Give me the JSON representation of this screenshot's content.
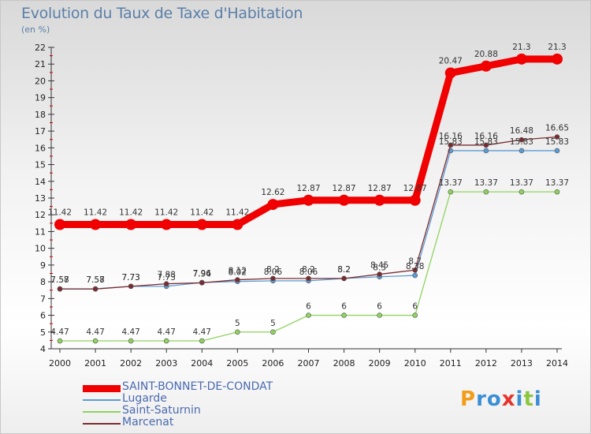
{
  "title": "Evolution du Taux de Taxe d'Habitation",
  "subtitle": "(en %)",
  "logo": {
    "text": "Proxiti",
    "letters": [
      {
        "ch": "P",
        "color": "#f39c1a"
      },
      {
        "ch": "r",
        "color": "#3a8fd4"
      },
      {
        "ch": "o",
        "color": "#3a8fd4"
      },
      {
        "ch": "x",
        "color": "#e8332c"
      },
      {
        "ch": "i",
        "color": "#3a8fd4"
      },
      {
        "ch": "t",
        "color": "#8cc63f"
      },
      {
        "ch": "i",
        "color": "#3a8fd4"
      }
    ]
  },
  "chart_data": {
    "type": "line",
    "title": "Evolution du Taux de Taxe d'Habitation",
    "subtitle": "(en %)",
    "x": [
      "2000",
      "2001",
      "2002",
      "2003",
      "2004",
      "2005",
      "2006",
      "2007",
      "2008",
      "2009",
      "2010",
      "2011",
      "2012",
      "2013",
      "2014"
    ],
    "ylim": [
      4,
      22
    ],
    "yticks": [
      4,
      5,
      6,
      7,
      8,
      9,
      10,
      11,
      12,
      13,
      14,
      15,
      16,
      17,
      18,
      19,
      20,
      21,
      22
    ],
    "grid": false,
    "legend_position": "bottom-left",
    "series": [
      {
        "name": "SAINT-BONNET-DE-CONDAT",
        "color": "#f00000",
        "values": [
          11.42,
          11.42,
          11.42,
          11.42,
          11.42,
          11.42,
          12.62,
          12.87,
          12.87,
          12.87,
          12.87,
          20.47,
          20.88,
          21.3,
          21.3
        ],
        "labels": [
          "11.42",
          "11.42",
          "11.42",
          "11.42",
          "11.42",
          "11.42",
          "12.62",
          "12.87",
          "12.87",
          "12.87",
          "12.87",
          "20.47",
          "20.88",
          "21.3",
          "21.3"
        ]
      },
      {
        "name": "Lugarde",
        "color": "#5b9bd5",
        "values": [
          7.58,
          7.58,
          7.73,
          7.73,
          7.96,
          8.02,
          8.06,
          8.06,
          8.2,
          8.3,
          8.38,
          15.83,
          15.83,
          15.83,
          15.83
        ],
        "labels": [
          "7.58",
          "7.58",
          "7.73",
          "7.73",
          "7.96",
          "8.02",
          "8.06",
          "8.06",
          "8.2",
          "8.3",
          "8.38",
          "15.83",
          "15.83",
          "15.83",
          "15.83"
        ]
      },
      {
        "name": "Saint-Saturnin",
        "color": "#8fd35f",
        "values": [
          4.47,
          4.47,
          4.47,
          4.47,
          4.47,
          5,
          5,
          6,
          6,
          6,
          6,
          13.37,
          13.37,
          13.37,
          13.37
        ],
        "labels": [
          "4.47",
          "4.47",
          "4.47",
          "4.47",
          "4.47",
          "5",
          "5",
          "6",
          "6",
          "6",
          "6",
          "13.37",
          "13.37",
          "13.37",
          "13.37"
        ]
      },
      {
        "name": "Marcenat",
        "color": "#7a2c30",
        "values": [
          7.57,
          7.57,
          7.73,
          7.88,
          7.94,
          8.12,
          8.2,
          8.2,
          8.2,
          8.45,
          8.7,
          16.16,
          16.16,
          16.48,
          16.65
        ],
        "labels": [
          "7.57",
          "7.57",
          "7.73",
          "7.88",
          "7.94",
          "8.12",
          "8.2",
          "8.2",
          "8.2",
          "8.45",
          "8.7",
          "16.16",
          "16.16",
          "16.48",
          "16.65"
        ]
      }
    ]
  }
}
